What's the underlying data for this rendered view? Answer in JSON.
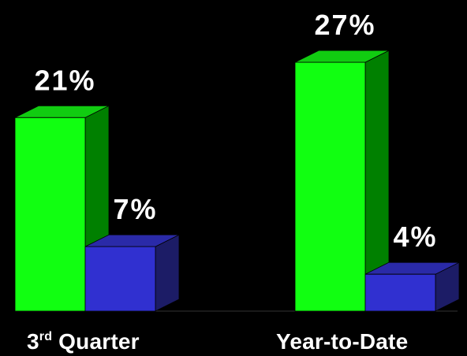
{
  "chart_data": {
    "type": "bar",
    "categories": [
      {
        "main": "3",
        "sup": "rd",
        "rest": " Quarter"
      },
      {
        "main": "Year-to-Date",
        "sup": "",
        "rest": ""
      }
    ],
    "series": [
      {
        "values": [
          21,
          27
        ],
        "labels": [
          "21%",
          "27%"
        ],
        "color": "#11ff11",
        "side_color": "#008000",
        "top_color": "#11cc11"
      },
      {
        "values": [
          7,
          4
        ],
        "labels": [
          "7%",
          "4%"
        ],
        "color": "#3030d0",
        "side_color": "#1c1c66",
        "top_color": "#2a2aa8"
      }
    ],
    "ylim": [
      0,
      30
    ],
    "grid": false,
    "legend": "none",
    "background": "#000000"
  }
}
